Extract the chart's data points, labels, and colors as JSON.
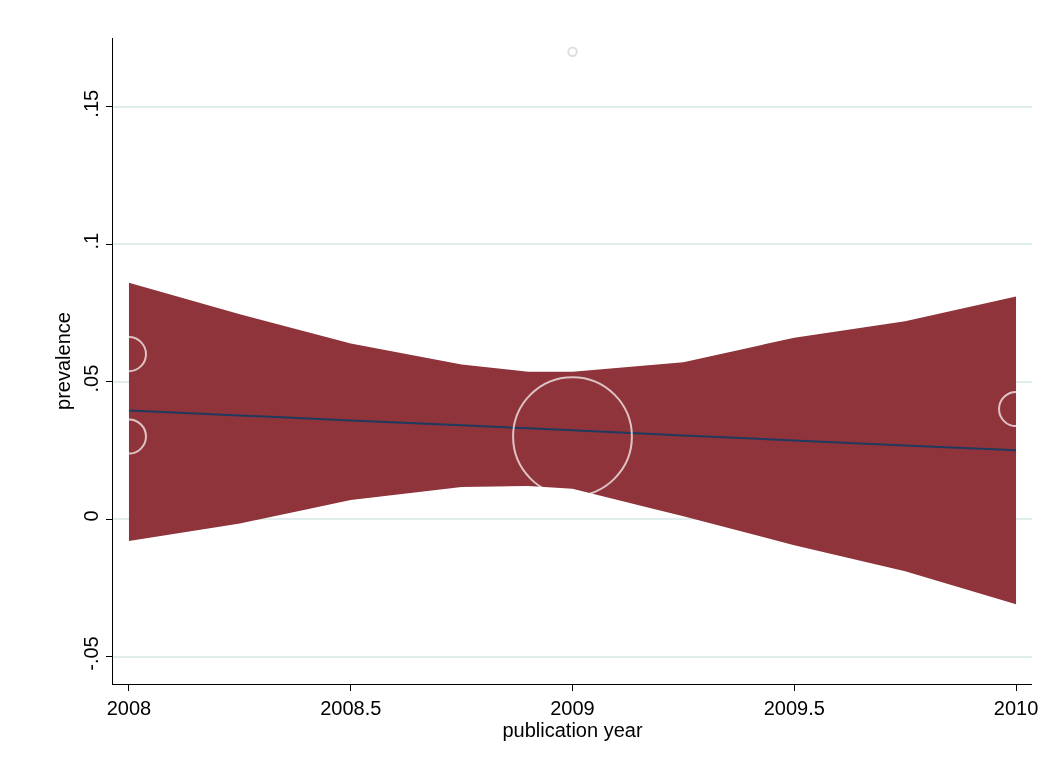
{
  "chart_data": {
    "type": "bubble",
    "xlabel": "publication year",
    "ylabel": "prevalence",
    "xlim": [
      2007.964,
      2010.036
    ],
    "ylim": [
      -0.06,
      0.175
    ],
    "xticks": [
      2008,
      2008.5,
      2009,
      2009.5,
      2010
    ],
    "yticks": [
      {
        "value": -0.05,
        "label": "-.05"
      },
      0,
      {
        "value": 0.05,
        "label": ".05"
      },
      {
        "value": 0.1,
        "label": ".1"
      },
      {
        "value": 0.15,
        "label": ".15"
      }
    ],
    "grid": "y",
    "series": [
      {
        "type": "line",
        "color": "#1f3a5f",
        "x": [
          2008,
          2008.25,
          2008.5,
          2008.75,
          2008.9,
          2009,
          2009.25,
          2009.5,
          2009.75,
          2010
        ],
        "values": [
          0.0395,
          0.0377,
          0.0359,
          0.0341,
          0.033,
          0.0323,
          0.0304,
          0.0286,
          0.0268,
          0.025
        ],
        "lower": [
          -0.008,
          -0.0016,
          0.0069,
          0.0117,
          0.012,
          0.011,
          0.001,
          -0.0095,
          -0.019,
          -0.031
        ],
        "upper": [
          0.086,
          0.0745,
          0.0639,
          0.0562,
          0.0536,
          0.0536,
          0.057,
          0.066,
          0.072,
          0.081
        ]
      },
      {
        "marker": "circle",
        "colors": [
          "#ffffff",
          "#ffffff",
          "#ffffff",
          "#ffffff",
          "#d0d0d0"
        ],
        "x": [
          2008,
          2008,
          2009,
          2010,
          2009
        ],
        "values": [
          0.06,
          0.03,
          0.03,
          0.04,
          0.17
        ],
        "sizes": [
          0.082,
          0.082,
          1,
          0.082,
          0.005
        ]
      }
    ]
  }
}
